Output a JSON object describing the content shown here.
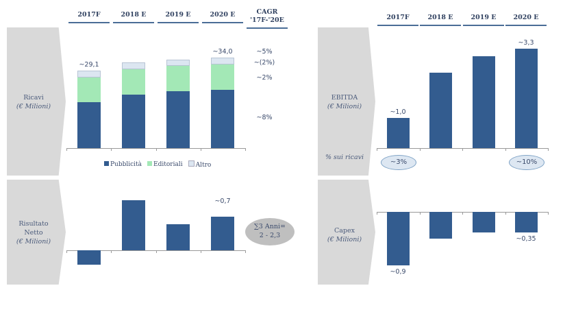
{
  "headers": [
    "2017F",
    "2018 E",
    "2019 E",
    "2020 E"
  ],
  "cagr_header": [
    "CAGR",
    "'17F-'20E"
  ],
  "colors": {
    "pubblicita": "#335c8f",
    "editoriali": "#a3e8b6",
    "altro": "#dce6f1",
    "bar": "#335c8f",
    "panel": "#d9d9d9"
  },
  "chart_data": [
    {
      "type": "bar",
      "stacked": true,
      "title": "Ricavi",
      "unit": "(€ Milioni)",
      "categories": [
        "2017F",
        "2018 E",
        "2019 E",
        "2020 E"
      ],
      "series": [
        {
          "name": "Pubblicità",
          "values": [
            17.3,
            20.1,
            21.4,
            21.9
          ]
        },
        {
          "name": "Editoriali",
          "values": [
            9.2,
            9.5,
            9.5,
            9.5
          ]
        },
        {
          "name": "Altro",
          "values": [
            2.6,
            2.6,
            2.3,
            2.6
          ]
        }
      ],
      "data_labels": [
        "~29,1",
        "",
        "",
        "~34,0"
      ],
      "cagr": [
        "~5%",
        "~(2%)",
        "~2%",
        "~8%"
      ],
      "legend": "bottom"
    },
    {
      "type": "bar",
      "title": "EBITDA",
      "unit": "(€ Milioni)",
      "categories": [
        "2017F",
        "2018 E",
        "2019 E",
        "2020 E"
      ],
      "values": [
        1.0,
        2.5,
        3.05,
        3.3
      ],
      "data_labels": [
        "~1,0",
        "",
        "",
        "~3,3"
      ],
      "margin_label": "% sui ricavi",
      "margins": [
        "~3%",
        "",
        "",
        "~10%"
      ]
    },
    {
      "type": "bar",
      "title": "Risultato Netto",
      "unit": "(€ Milioni)",
      "categories": [
        "2017F",
        "2018 E",
        "2019 E",
        "2020 E"
      ],
      "values": [
        -0.3,
        1.05,
        0.55,
        0.7
      ],
      "data_labels": [
        "",
        "",
        "",
        "~0,7"
      ],
      "sum_note": [
        "∑3 Anni=",
        "2 - 2,3"
      ]
    },
    {
      "type": "bar",
      "title": "Capex",
      "unit": "(€ Milioni)",
      "categories": [
        "2017F",
        "2018 E",
        "2019 E",
        "2020 E"
      ],
      "values": [
        -0.9,
        -0.45,
        -0.35,
        -0.35
      ],
      "data_labels": [
        "~0,9",
        "",
        "",
        "~0,35"
      ]
    }
  ]
}
